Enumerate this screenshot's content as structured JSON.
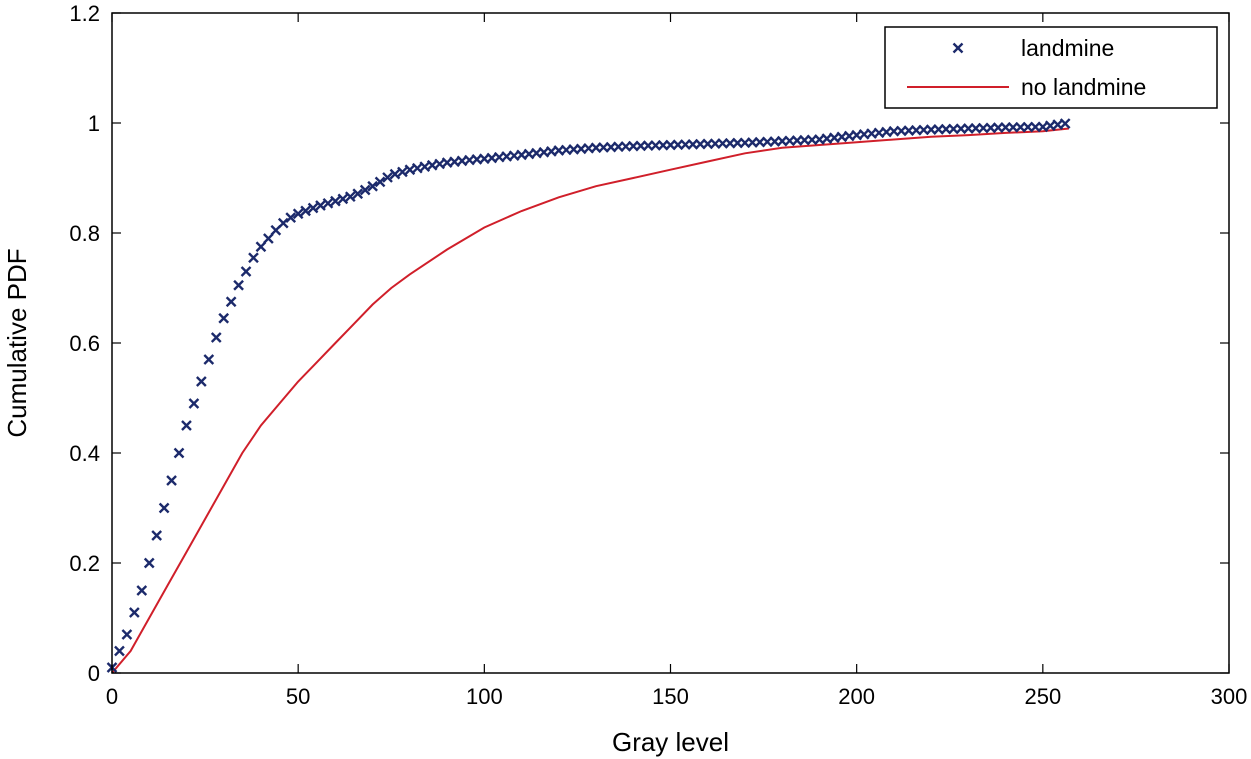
{
  "chart_data": {
    "type": "line",
    "title": "",
    "xlabel": "Gray level",
    "ylabel": "Cumulative PDF",
    "xlim": [
      0,
      300
    ],
    "ylim": [
      0,
      1.2
    ],
    "xticks": [
      0,
      50,
      100,
      150,
      200,
      250,
      300
    ],
    "yticks": [
      0,
      0.2,
      0.4,
      0.6,
      0.8,
      1,
      1.2
    ],
    "xtick_labels": [
      "0",
      "50",
      "100",
      "150",
      "200",
      "250",
      "300"
    ],
    "ytick_labels": [
      "0",
      "0.2",
      "0.4",
      "0.6",
      "0.8",
      "1",
      "1.2"
    ],
    "grid": false,
    "legend_position": "top-right",
    "series": [
      {
        "name": "landmine",
        "marker": "x",
        "line": "none",
        "color": "#1c2a6b",
        "x": [
          0,
          2,
          4,
          6,
          8,
          10,
          12,
          14,
          16,
          18,
          20,
          22,
          24,
          26,
          28,
          30,
          32,
          34,
          36,
          38,
          40,
          42,
          44,
          46,
          48,
          50,
          55,
          60,
          65,
          70,
          75,
          80,
          85,
          90,
          95,
          100,
          110,
          120,
          130,
          140,
          150,
          160,
          170,
          180,
          190,
          200,
          210,
          220,
          230,
          240,
          250,
          257
        ],
        "y": [
          0.01,
          0.04,
          0.07,
          0.11,
          0.15,
          0.2,
          0.25,
          0.3,
          0.35,
          0.4,
          0.45,
          0.49,
          0.53,
          0.57,
          0.61,
          0.645,
          0.675,
          0.705,
          0.73,
          0.755,
          0.775,
          0.79,
          0.805,
          0.818,
          0.828,
          0.835,
          0.848,
          0.858,
          0.868,
          0.885,
          0.905,
          0.915,
          0.922,
          0.928,
          0.932,
          0.935,
          0.942,
          0.95,
          0.955,
          0.958,
          0.96,
          0.962,
          0.964,
          0.967,
          0.97,
          0.978,
          0.985,
          0.988,
          0.99,
          0.992,
          0.993,
          1.0
        ]
      },
      {
        "name": "no landmine",
        "marker": "none",
        "line": "solid",
        "color": "#d01f2a",
        "x": [
          0,
          5,
          10,
          15,
          20,
          25,
          30,
          35,
          40,
          45,
          50,
          55,
          60,
          65,
          70,
          75,
          80,
          90,
          100,
          110,
          120,
          130,
          140,
          150,
          160,
          170,
          180,
          190,
          200,
          210,
          220,
          230,
          240,
          250,
          257
        ],
        "y": [
          0,
          0.04,
          0.1,
          0.16,
          0.22,
          0.28,
          0.34,
          0.4,
          0.45,
          0.49,
          0.53,
          0.565,
          0.6,
          0.635,
          0.67,
          0.7,
          0.725,
          0.77,
          0.81,
          0.84,
          0.865,
          0.885,
          0.9,
          0.915,
          0.93,
          0.945,
          0.955,
          0.96,
          0.965,
          0.97,
          0.975,
          0.978,
          0.982,
          0.985,
          0.99
        ]
      }
    ]
  }
}
